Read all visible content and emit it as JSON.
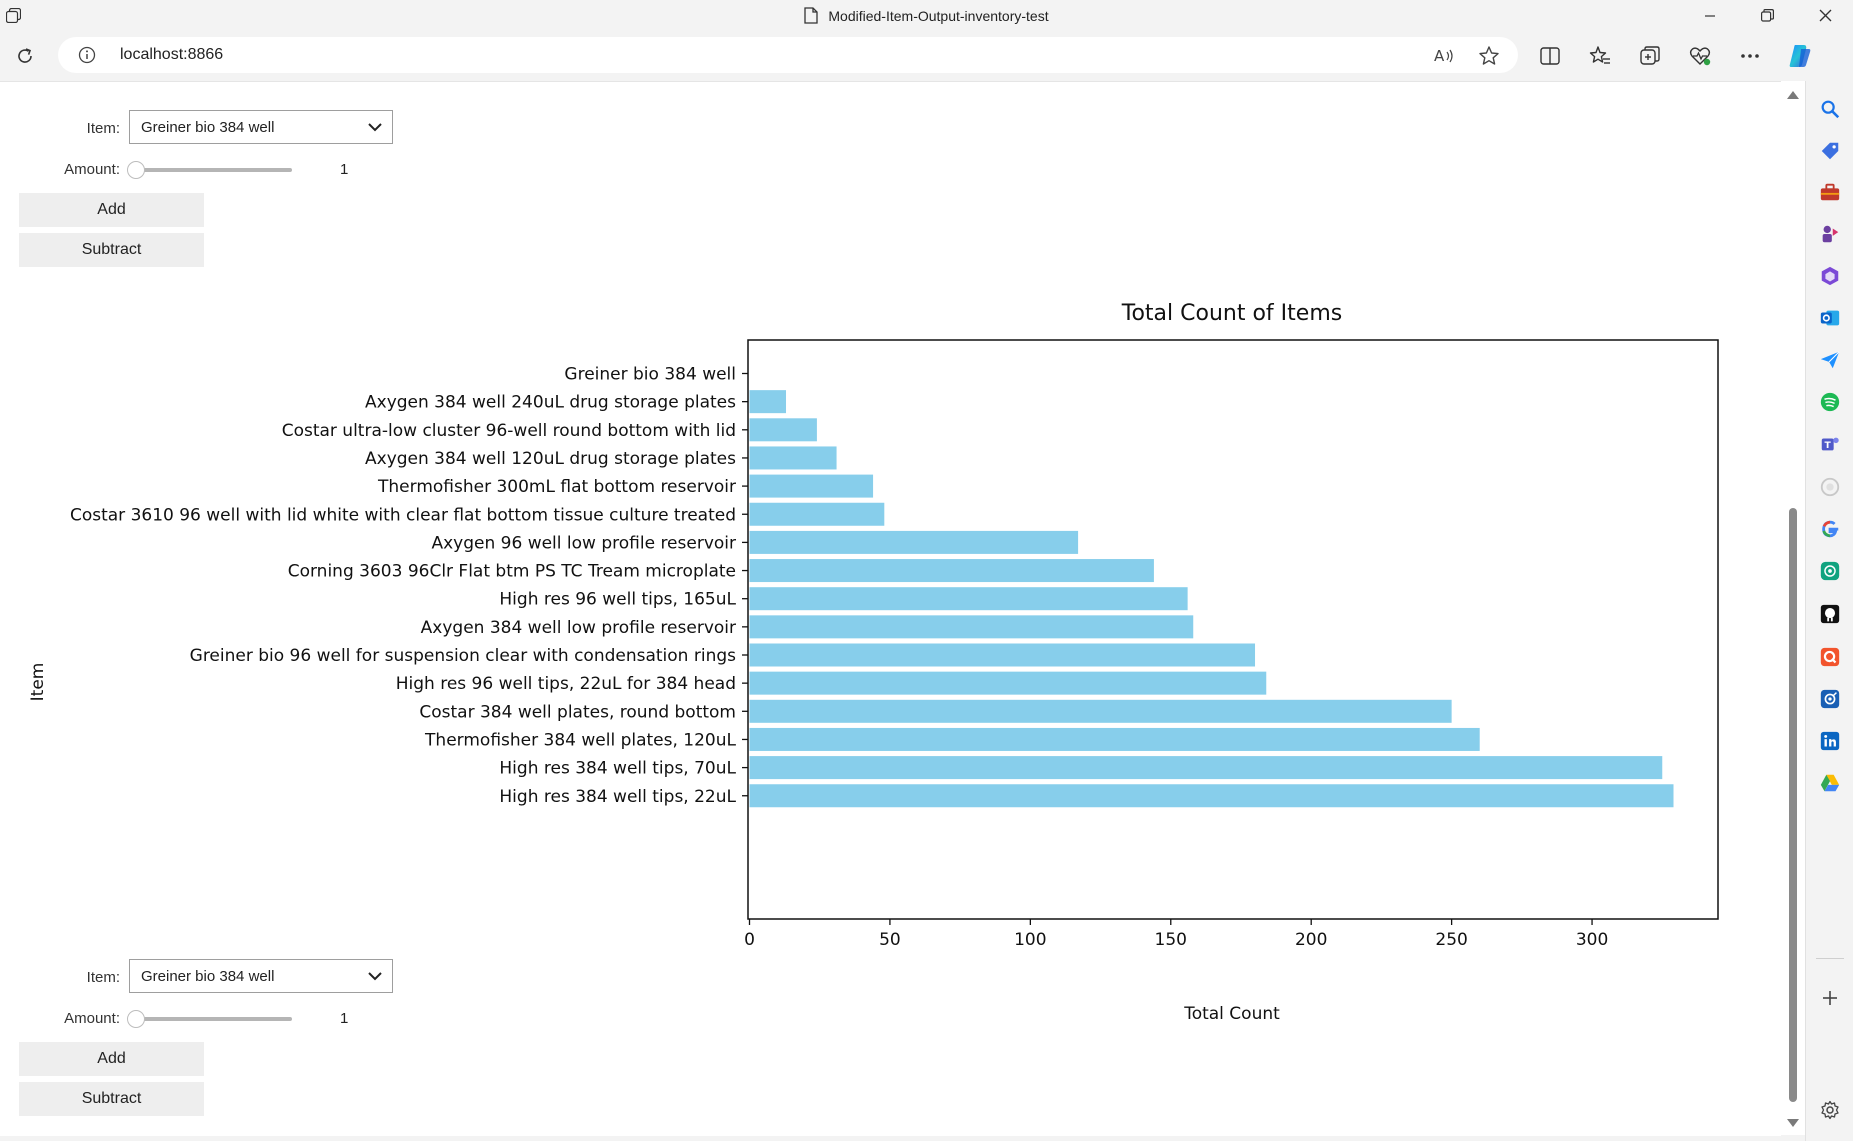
{
  "window": {
    "title": "Modified-Item-Output-inventory-test"
  },
  "address_bar": {
    "url": "localhost:8866"
  },
  "icons": {
    "reload": "reload-icon",
    "info": "info-icon",
    "read_aloud": "read-aloud-icon",
    "favorite": "star-icon",
    "split_screen": "split-screen-icon",
    "favorites": "favorites-icon",
    "collections": "collections-icon",
    "browser_essentials": "browser-essentials-icon",
    "more": "more-icon",
    "copilot": "copilot-icon"
  },
  "widgets_top": {
    "item_label": "Item:",
    "item_value": "Greiner bio 384 well",
    "amount_label": "Amount:",
    "amount_value": "1",
    "add_label": "Add",
    "subtract_label": "Subtract"
  },
  "widgets_bottom": {
    "item_label": "Item:",
    "item_value": "Greiner bio 384 well",
    "amount_label": "Amount:",
    "amount_value": "1",
    "add_label": "Add",
    "subtract_label": "Subtract"
  },
  "chart_data": {
    "type": "bar",
    "orientation": "horizontal",
    "title": "Total Count of Items",
    "xlabel": "Total Count",
    "ylabel": "Item",
    "xlim": [
      0,
      345
    ],
    "xticks": [
      0,
      50,
      100,
      150,
      200,
      250,
      300
    ],
    "bar_color": "#87ceeb",
    "grid": false,
    "categories": [
      "Greiner bio 384 well",
      "Axygen 384 well 240uL drug storage plates",
      "Costar ultra-low cluster 96-well round bottom with lid",
      "Axygen 384 well 120uL drug storage plates",
      "Thermofisher 300mL flat bottom reservoir",
      "Costar 3610 96 well with lid white with clear flat bottom tissue culture treated",
      "Axygen 96 well low profile reservoir",
      "Corning 3603 96Clr Flat btm PS TC Tream microplate",
      "High res 96 well tips, 165uL",
      "Axygen 384 well low profile reservoir",
      "Greiner bio 96 well for suspension clear with condensation rings",
      "High res 96 well tips, 22uL for 384 head",
      "Costar 384 well plates, round bottom",
      "Thermofisher 384 well plates, 120uL",
      "High res 384 well tips, 70uL",
      "High res 384 well tips, 22uL"
    ],
    "values": [
      0,
      13,
      24,
      31,
      44,
      48,
      117,
      144,
      156,
      158,
      180,
      184,
      250,
      260,
      325,
      329
    ]
  },
  "sidebar": [
    {
      "name": "search-icon",
      "color": "#1a73e8"
    },
    {
      "name": "shopping-tag-icon",
      "color": "#3b6fe0"
    },
    {
      "name": "toolbox-icon",
      "color": "#c0392b"
    },
    {
      "name": "games-icon",
      "color": "#6b3fa0"
    },
    {
      "name": "microsoft-365-icon",
      "color": "#7b49d6"
    },
    {
      "name": "outlook-icon",
      "color": "#0a64c9"
    },
    {
      "name": "send-icon",
      "color": "#1e90ff"
    },
    {
      "name": "spotify-icon",
      "color": "#1db954"
    },
    {
      "name": "teams-icon",
      "color": "#5059c9"
    },
    {
      "name": "image-icon",
      "color": "#c8c8c8"
    },
    {
      "name": "google-icon",
      "color": "#4285f4"
    },
    {
      "name": "chatgpt-icon",
      "color": "#10a37f"
    },
    {
      "name": "github-icon",
      "color": "#111111"
    },
    {
      "name": "q-icon",
      "color": "#f2542d"
    },
    {
      "name": "network-icon",
      "color": "#1a5fb4"
    },
    {
      "name": "linkedin-icon",
      "color": "#0a66c2"
    },
    {
      "name": "google-drive-icon",
      "color": "#34a853"
    }
  ]
}
